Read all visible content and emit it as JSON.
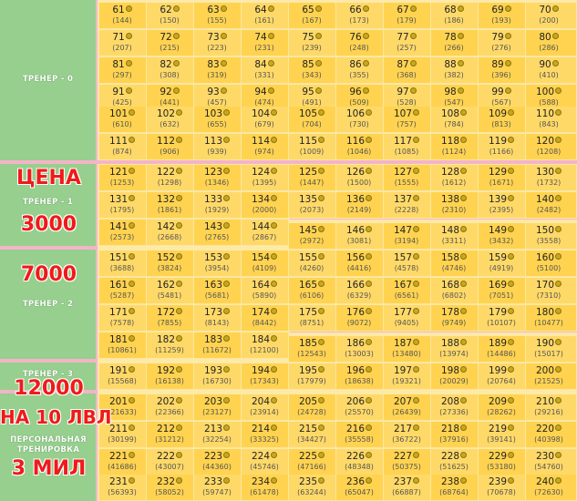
{
  "sections": [
    {
      "label": "ТРЕНЕР - 0"
    },
    {
      "label": "ТРЕНЕР - 1"
    },
    {
      "label": "ТРЕНЕР - 2"
    },
    {
      "label": "ТРЕНЕР - 3"
    },
    {
      "label": "ПЕРСОНАЛЬНАЯ ТРЕНИРОВКА"
    }
  ],
  "overlay": {
    "price_title": "ЦЕНА",
    "price_1": "3000",
    "price_2": "7000",
    "price_3": "12000",
    "lvl10": "НА 10 ЛВЛ",
    "mil": "3 МИЛ"
  },
  "levels": [
    [
      61,
      144
    ],
    [
      62,
      150
    ],
    [
      63,
      155
    ],
    [
      64,
      161
    ],
    [
      65,
      167
    ],
    [
      66,
      173
    ],
    [
      67,
      179
    ],
    [
      68,
      186
    ],
    [
      69,
      193
    ],
    [
      70,
      200
    ],
    [
      71,
      207
    ],
    [
      72,
      215
    ],
    [
      73,
      223
    ],
    [
      74,
      231
    ],
    [
      75,
      239
    ],
    [
      76,
      248
    ],
    [
      77,
      257
    ],
    [
      78,
      266
    ],
    [
      79,
      276
    ],
    [
      80,
      286
    ],
    [
      81,
      297
    ],
    [
      82,
      308
    ],
    [
      83,
      319
    ],
    [
      84,
      331
    ],
    [
      85,
      343
    ],
    [
      86,
      355
    ],
    [
      87,
      368
    ],
    [
      88,
      382
    ],
    [
      89,
      396
    ],
    [
      90,
      410
    ],
    [
      91,
      425
    ],
    [
      92,
      441
    ],
    [
      93,
      457
    ],
    [
      94,
      474
    ],
    [
      95,
      491
    ],
    [
      96,
      509
    ],
    [
      97,
      528
    ],
    [
      98,
      547
    ],
    [
      99,
      567
    ],
    [
      100,
      588
    ],
    [
      101,
      610
    ],
    [
      102,
      632
    ],
    [
      103,
      655
    ],
    [
      104,
      679
    ],
    [
      105,
      704
    ],
    [
      106,
      730
    ],
    [
      107,
      757
    ],
    [
      108,
      784
    ],
    [
      109,
      813
    ],
    [
      110,
      843
    ],
    [
      111,
      874
    ],
    [
      112,
      906
    ],
    [
      113,
      939
    ],
    [
      114,
      974
    ],
    [
      115,
      1009
    ],
    [
      116,
      1046
    ],
    [
      117,
      1085
    ],
    [
      118,
      1124
    ],
    [
      119,
      1166
    ],
    [
      120,
      1208
    ],
    [
      121,
      1253
    ],
    [
      122,
      1298
    ],
    [
      123,
      1346
    ],
    [
      124,
      1395
    ],
    [
      125,
      1447
    ],
    [
      126,
      1500
    ],
    [
      127,
      1555
    ],
    [
      128,
      1612
    ],
    [
      129,
      1671
    ],
    [
      130,
      1732
    ],
    [
      131,
      1795
    ],
    [
      132,
      1861
    ],
    [
      133,
      1929
    ],
    [
      134,
      2000
    ],
    [
      135,
      2073
    ],
    [
      136,
      2149
    ],
    [
      137,
      2228
    ],
    [
      138,
      2310
    ],
    [
      139,
      2395
    ],
    [
      140,
      2482
    ],
    [
      141,
      2573
    ],
    [
      142,
      2668
    ],
    [
      143,
      2765
    ],
    [
      144,
      2867
    ],
    [
      145,
      2972
    ],
    [
      146,
      3081
    ],
    [
      147,
      3194
    ],
    [
      148,
      3311
    ],
    [
      149,
      3432
    ],
    [
      150,
      3558
    ],
    [
      151,
      3688
    ],
    [
      152,
      3824
    ],
    [
      153,
      3954
    ],
    [
      154,
      4109
    ],
    [
      155,
      4260
    ],
    [
      156,
      4416
    ],
    [
      157,
      4578
    ],
    [
      158,
      4746
    ],
    [
      159,
      4919
    ],
    [
      160,
      5100
    ],
    [
      161,
      5287
    ],
    [
      162,
      5481
    ],
    [
      163,
      5681
    ],
    [
      164,
      5890
    ],
    [
      165,
      6106
    ],
    [
      166,
      6329
    ],
    [
      167,
      6561
    ],
    [
      168,
      6802
    ],
    [
      169,
      7051
    ],
    [
      170,
      7310
    ],
    [
      171,
      7578
    ],
    [
      172,
      7855
    ],
    [
      173,
      8143
    ],
    [
      174,
      8442
    ],
    [
      175,
      8751
    ],
    [
      176,
      9072
    ],
    [
      177,
      9405
    ],
    [
      178,
      9749
    ],
    [
      179,
      10107
    ],
    [
      180,
      10477
    ],
    [
      181,
      10861
    ],
    [
      182,
      11259
    ],
    [
      183,
      11672
    ],
    [
      184,
      12100
    ],
    [
      185,
      12543
    ],
    [
      186,
      13003
    ],
    [
      187,
      13480
    ],
    [
      188,
      13974
    ],
    [
      189,
      14486
    ],
    [
      190,
      15017
    ],
    [
      191,
      15568
    ],
    [
      192,
      16138
    ],
    [
      193,
      16730
    ],
    [
      194,
      17343
    ],
    [
      195,
      17979
    ],
    [
      196,
      18638
    ],
    [
      197,
      19321
    ],
    [
      198,
      20029
    ],
    [
      199,
      20764
    ],
    [
      200,
      21525
    ],
    [
      201,
      21633
    ],
    [
      202,
      22366
    ],
    [
      203,
      23127
    ],
    [
      204,
      23914
    ],
    [
      205,
      24728
    ],
    [
      206,
      25570
    ],
    [
      207,
      26439
    ],
    [
      208,
      27336
    ],
    [
      209,
      28262
    ],
    [
      210,
      29216
    ],
    [
      211,
      30199
    ],
    [
      212,
      31212
    ],
    [
      213,
      32254
    ],
    [
      214,
      33325
    ],
    [
      215,
      34427
    ],
    [
      216,
      35558
    ],
    [
      217,
      36722
    ],
    [
      218,
      37916
    ],
    [
      219,
      39141
    ],
    [
      220,
      40398
    ],
    [
      221,
      41686
    ],
    [
      222,
      43007
    ],
    [
      223,
      44360
    ],
    [
      224,
      45746
    ],
    [
      225,
      47166
    ],
    [
      226,
      48348
    ],
    [
      227,
      50375
    ],
    [
      228,
      51625
    ],
    [
      229,
      53180
    ],
    [
      230,
      54760
    ],
    [
      231,
      56393
    ],
    [
      232,
      58052
    ],
    [
      233,
      59747
    ],
    [
      234,
      61478
    ],
    [
      235,
      63244
    ],
    [
      236,
      65047
    ],
    [
      237,
      66887
    ],
    [
      238,
      68764
    ],
    [
      239,
      70678
    ],
    [
      240,
      72630
    ]
  ]
}
